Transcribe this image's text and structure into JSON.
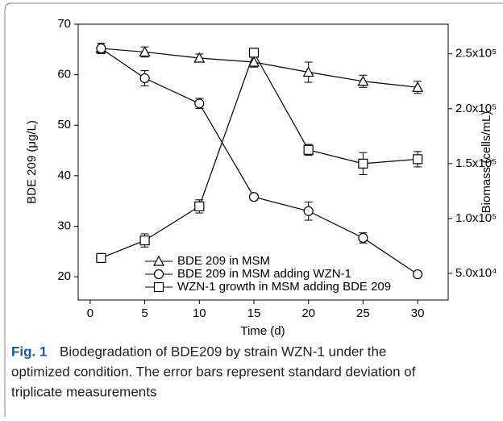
{
  "chart_data": {
    "type": "line",
    "x_label": "Time (d)",
    "y_label": "BDE 209 (μg/L)",
    "y2_label": "Biomass (cells/mL)",
    "x": [
      1,
      5,
      10,
      15,
      20,
      25,
      30
    ],
    "xlim": [
      -1.1,
      32.8
    ],
    "xticks": [
      0,
      5,
      10,
      15,
      20,
      25,
      30
    ],
    "ylim": [
      15.4,
      70
    ],
    "yticks": [
      20,
      30,
      40,
      50,
      60,
      70
    ],
    "y2lim": [
      25700,
      277000
    ],
    "y2ticks": [
      {
        "value": 50000,
        "label": "5.0x10⁴"
      },
      {
        "value": 100000,
        "label": "1.0x10⁵"
      },
      {
        "value": 150000,
        "label": "1.5x10⁵"
      },
      {
        "value": 200000,
        "label": "2.0x10⁵"
      },
      {
        "value": 250000,
        "label": "2.5x10⁵"
      }
    ],
    "legend": "lower left",
    "series": [
      {
        "name": "BDE 209 in MSM",
        "marker": "triangle",
        "color": "#000000",
        "values": [
          65.2,
          64.5,
          63.3,
          62.5,
          60.5,
          58.7,
          57.5
        ],
        "errors": [
          1.0,
          1.0,
          0.8,
          1.0,
          2.0,
          1.2,
          1.2
        ]
      },
      {
        "name": "BDE 209 in MSM adding WZN-1",
        "marker": "circle",
        "color": "#000000",
        "values": [
          65.2,
          59.3,
          54.3,
          35.8,
          33.0,
          27.7,
          20.5
        ],
        "errors": [
          1.0,
          1.5,
          1.0,
          0.6,
          1.8,
          1.0,
          0.5
        ]
      },
      {
        "name": "WZN-1 growth in MSM adding BDE 209",
        "marker": "square",
        "color": "#000000",
        "axis": "y2",
        "values": [
          64000,
          80000,
          111000,
          251000,
          162500,
          150000,
          154000
        ],
        "errors": [
          4000,
          6000,
          6000,
          4000,
          5000,
          10000,
          7000
        ]
      }
    ],
    "caption": {
      "label": "Fig. 1",
      "lines": [
        "Biodegradation of BDE209 by strain WZN-1 under the",
        "optimized condition. The error bars represent standard deviation of",
        "triplicate measurements"
      ]
    }
  }
}
